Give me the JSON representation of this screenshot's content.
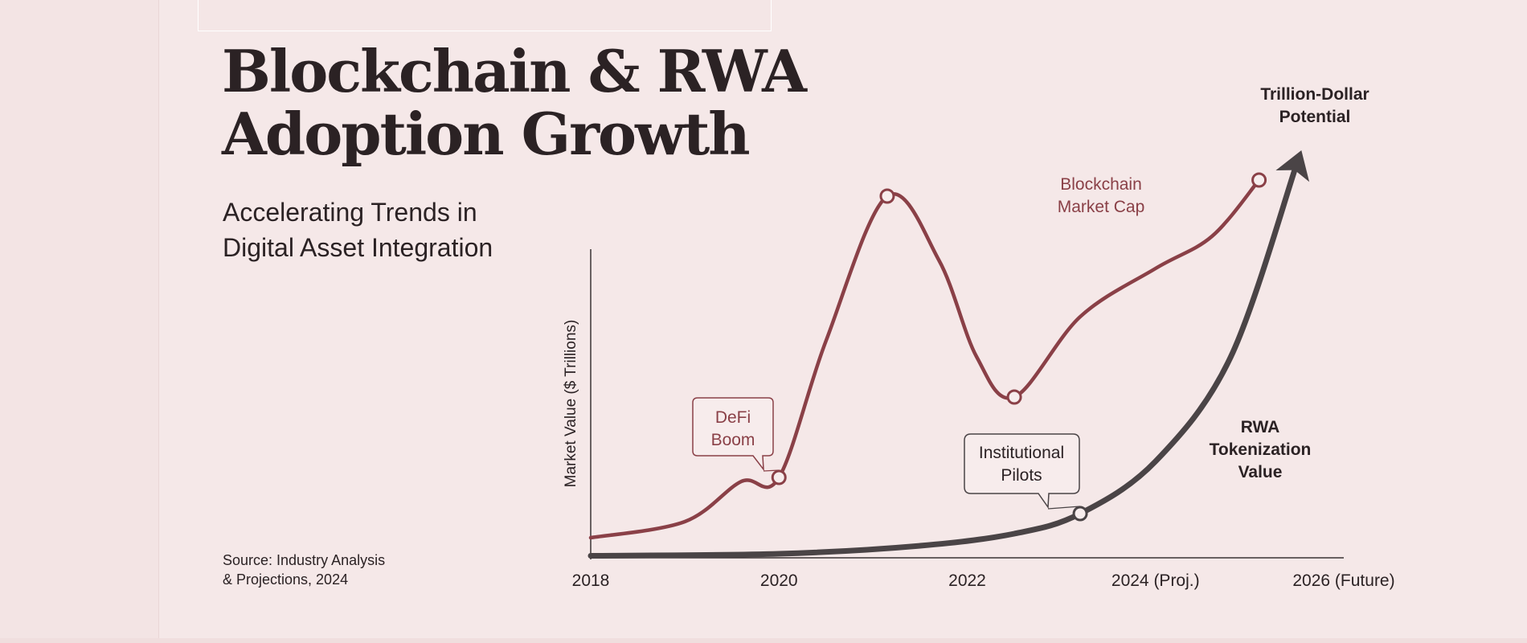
{
  "header": {
    "title_line1": "Blockchain & RWA",
    "title_line2": "Adoption Growth",
    "subtitle_line1": "Accelerating Trends in",
    "subtitle_line2": "Digital Asset Integration"
  },
  "footer": {
    "source_line1": "Source: Industry Analysis",
    "source_line2": "& Projections, 2024"
  },
  "colors": {
    "background": "#f5e8e8",
    "blockchain": "#8a4047",
    "rwa": "#4a4446",
    "text": "#2b2224"
  },
  "chart_data": {
    "type": "line",
    "title": "Blockchain & RWA Adoption Growth",
    "subtitle": "Accelerating Trends in Digital Asset Integration",
    "ylabel": "Market Value ($ Trillions)",
    "xlabel": "",
    "x_ticks": [
      "2018",
      "2020",
      "2022",
      "2024 (Proj.)",
      "2026 (Future)"
    ],
    "x_tick_values": [
      2018,
      2020,
      2022,
      2024,
      2026
    ],
    "xlim": [
      2018,
      2026
    ],
    "ylim": [
      0,
      10
    ],
    "grid": false,
    "legend": "none",
    "series": [
      {
        "name": "Blockchain Market Cap",
        "color": "#8a4047",
        "points": [
          [
            2018,
            0.5
          ],
          [
            2019,
            0.9
          ],
          [
            2019.6,
            1.9
          ],
          [
            2020,
            2.0
          ],
          [
            2020.5,
            5.4
          ],
          [
            2021.15,
            9.0
          ],
          [
            2021.7,
            7.4
          ],
          [
            2022.1,
            5.0
          ],
          [
            2022.5,
            4.0
          ],
          [
            2023.2,
            6.0
          ],
          [
            2024,
            7.2
          ],
          [
            2024.6,
            8.0
          ],
          [
            2025.1,
            9.4
          ]
        ],
        "markers": [
          [
            2020,
            2.0
          ],
          [
            2021.15,
            9.0
          ],
          [
            2022.5,
            4.0
          ],
          [
            2025.1,
            9.4
          ]
        ]
      },
      {
        "name": "RWA Tokenization Value",
        "color": "#4a4446",
        "points": [
          [
            2018,
            0.05
          ],
          [
            2020,
            0.1
          ],
          [
            2021.5,
            0.3
          ],
          [
            2022.5,
            0.6
          ],
          [
            2023.2,
            1.1
          ],
          [
            2024,
            2.4
          ],
          [
            2024.8,
            5.0
          ],
          [
            2025.5,
            9.8
          ]
        ],
        "markers": [
          [
            2023.2,
            1.1
          ]
        ]
      }
    ],
    "series_labels": [
      {
        "series": 0,
        "lines": [
          "Blockchain",
          "Market Cap"
        ]
      },
      {
        "series": 1,
        "lines": [
          "RWA",
          "Tokenization",
          "Value"
        ]
      }
    ],
    "annotations": [
      {
        "name": "defi-boom",
        "lines": [
          "DeFi",
          "Boom"
        ],
        "anchor": [
          2020,
          2.0
        ]
      },
      {
        "name": "institutional-pilots",
        "lines": [
          "Institutional",
          "Pilots"
        ],
        "anchor": [
          2023.2,
          1.1
        ]
      },
      {
        "name": "trillion-dollar-potential",
        "lines": [
          "Trillion-Dollar",
          "Potential"
        ],
        "anchor": [
          2025.5,
          9.8
        ]
      }
    ]
  }
}
